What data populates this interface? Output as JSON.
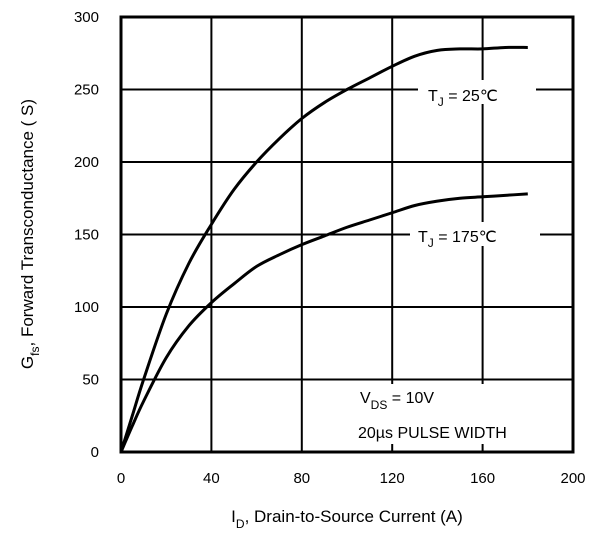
{
  "chart_data": {
    "type": "line",
    "x_axis": {
      "label_main": "I",
      "label_sub": "D",
      "label_rest": ", Drain-to-Source Current (A)",
      "range": [
        0,
        200
      ],
      "ticks": [
        "0",
        "40",
        "80",
        "120",
        "160",
        "200"
      ],
      "tick_values": [
        0,
        40,
        80,
        120,
        160,
        200
      ]
    },
    "y_axis": {
      "label_main": "G",
      "label_sub": "fs",
      "label_rest": ", Forward Transconductance ( S)",
      "range": [
        0,
        300
      ],
      "ticks": [
        "0",
        "50",
        "100",
        "150",
        "200",
        "250",
        "300"
      ],
      "tick_values": [
        0,
        50,
        100,
        150,
        200,
        250,
        300
      ]
    },
    "grid": true,
    "series": [
      {
        "label_main": "T",
        "label_sub": "J",
        "label_rest": " = 25℃",
        "x": [
          0,
          5,
          10,
          20,
          30,
          40,
          50,
          60,
          70,
          80,
          90,
          100,
          110,
          120,
          130,
          140,
          150,
          160,
          170,
          180
        ],
        "y": [
          0,
          25,
          50,
          95,
          130,
          157,
          181,
          200,
          216,
          230,
          241,
          250,
          258,
          266,
          273,
          277,
          278,
          278,
          279,
          279
        ]
      },
      {
        "label_main": "T",
        "label_sub": "J",
        "label_rest": " = 175℃",
        "x": [
          0,
          5,
          10,
          20,
          30,
          40,
          50,
          60,
          70,
          80,
          90,
          100,
          110,
          120,
          130,
          140,
          150,
          160,
          170,
          180
        ],
        "y": [
          0,
          18,
          35,
          65,
          87,
          103,
          116,
          128,
          136,
          143,
          149,
          155,
          160,
          165,
          170,
          173,
          175,
          176,
          177,
          178
        ]
      }
    ],
    "annotations": {
      "condition_main": "V",
      "condition_sub": "DS",
      "condition_rest": " = 10V",
      "pulse": "20µs PULSE WIDTH"
    },
    "colors": {
      "line": "#000000",
      "grid": "#000000",
      "background": "#ffffff"
    }
  }
}
